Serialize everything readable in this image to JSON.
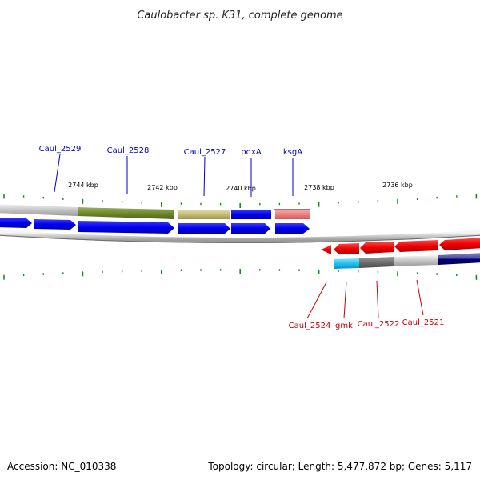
{
  "title": "Caulobacter sp. K31, complete genome",
  "footer": {
    "accession": "Accession: NC_010338",
    "summary": "Topology: circular; Length: 5,477,872 bp; Genes: 5,117"
  },
  "colors": {
    "forward_label": "#0000cc",
    "reverse_label": "#cc0000",
    "tick": "#1a8a1a",
    "backbone": "#8a8a8a"
  },
  "scale_labels": [
    "2744 kbp",
    "2742 kbp",
    "2740 kbp",
    "2738 kbp",
    "2736 kbp"
  ],
  "forward_labels": [
    "Caul_2529",
    "Caul_2528",
    "Caul_2527",
    "pdxA",
    "ksgA"
  ],
  "reverse_labels": [
    "Caul_2524",
    "gmk",
    "Caul_2522",
    "Caul_2521"
  ]
}
